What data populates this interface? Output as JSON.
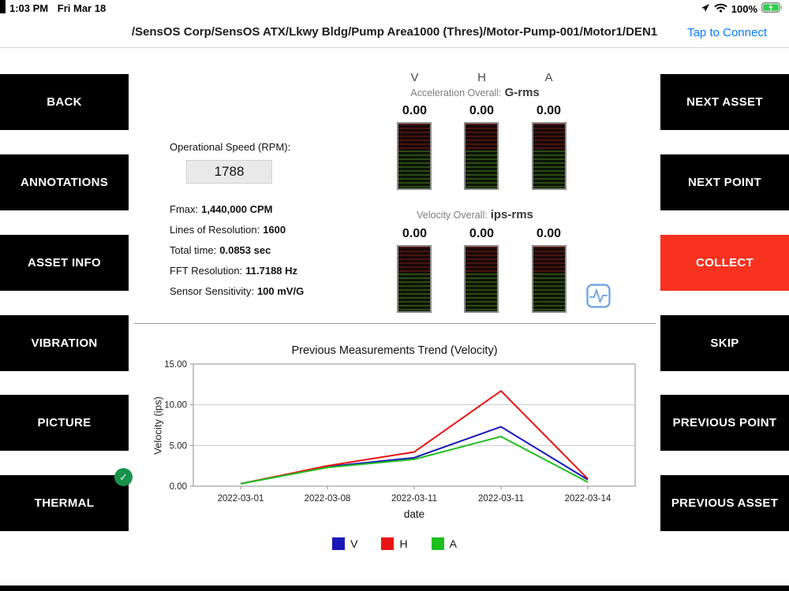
{
  "status_bar": {
    "time": "1:03 PM",
    "date": "Fri Mar 18",
    "battery": "100%"
  },
  "header": {
    "breadcrumb": "/SensOS Corp/SensOS ATX/Lkwy Bldg/Pump Area1000 (Thres)/Motor-Pump-001/Motor1/DEN1",
    "connect_link": "Tap to Connect"
  },
  "left_buttons": [
    {
      "label": "BACK"
    },
    {
      "label": "ANNOTATIONS"
    },
    {
      "label": "ASSET INFO"
    },
    {
      "label": "VIBRATION"
    },
    {
      "label": "PICTURE"
    },
    {
      "label": "THERMAL",
      "checked": true
    }
  ],
  "right_buttons": [
    {
      "label": "NEXT ASSET"
    },
    {
      "label": "NEXT POINT"
    },
    {
      "label": "COLLECT",
      "accent": "#F8321E"
    },
    {
      "label": "SKIP"
    },
    {
      "label": "PREVIOUS POINT"
    },
    {
      "label": "PREVIOUS ASSET"
    }
  ],
  "measurements": {
    "axis_labels": [
      "V",
      "H",
      "A"
    ],
    "acceleration": {
      "label": "Acceleration Overall:",
      "unit": "G-rms",
      "values": [
        "0.00",
        "0.00",
        "0.00"
      ]
    },
    "velocity": {
      "label": "Velocity Overall:",
      "unit": "ips-rms",
      "values": [
        "0.00",
        "0.00",
        "0.00"
      ]
    }
  },
  "settings": {
    "rpm_label": "Operational Speed (RPM):",
    "rpm_value": "1788",
    "fields": [
      {
        "label": "Fmax:",
        "value": "1,440,000 CPM"
      },
      {
        "label": "Lines of Resolution:",
        "value": "1600"
      },
      {
        "label": "Total time:",
        "value": "0.0853 sec"
      },
      {
        "label": "FFT Resolution:",
        "value": "11.7188 Hz"
      },
      {
        "label": "Sensor Sensitivity:",
        "value": "100 mV/G"
      }
    ]
  },
  "chart_data": {
    "type": "line",
    "title": "Previous Measurements Trend (Velocity)",
    "xlabel": "date",
    "ylabel": "Velocity (ips)",
    "categories": [
      "2022-03-01",
      "2022-03-08",
      "2022-03-11",
      "2022-03-11",
      "2022-03-14"
    ],
    "ylim": [
      0,
      15
    ],
    "yticks": [
      0,
      5,
      10,
      15
    ],
    "ytick_labels": [
      "0.00",
      "5.00",
      "10.00",
      "15.00"
    ],
    "grid": true,
    "legend_position": "bottom",
    "series": [
      {
        "name": "V",
        "color": "#1717b8",
        "values": [
          0.3,
          2.4,
          3.5,
          7.3,
          0.8
        ]
      },
      {
        "name": "H",
        "color": "#e81414",
        "values": [
          0.3,
          2.5,
          4.2,
          11.7,
          0.9
        ]
      },
      {
        "name": "A",
        "color": "#1fbe1f",
        "values": [
          0.3,
          2.3,
          3.3,
          6.1,
          0.5
        ]
      }
    ]
  }
}
